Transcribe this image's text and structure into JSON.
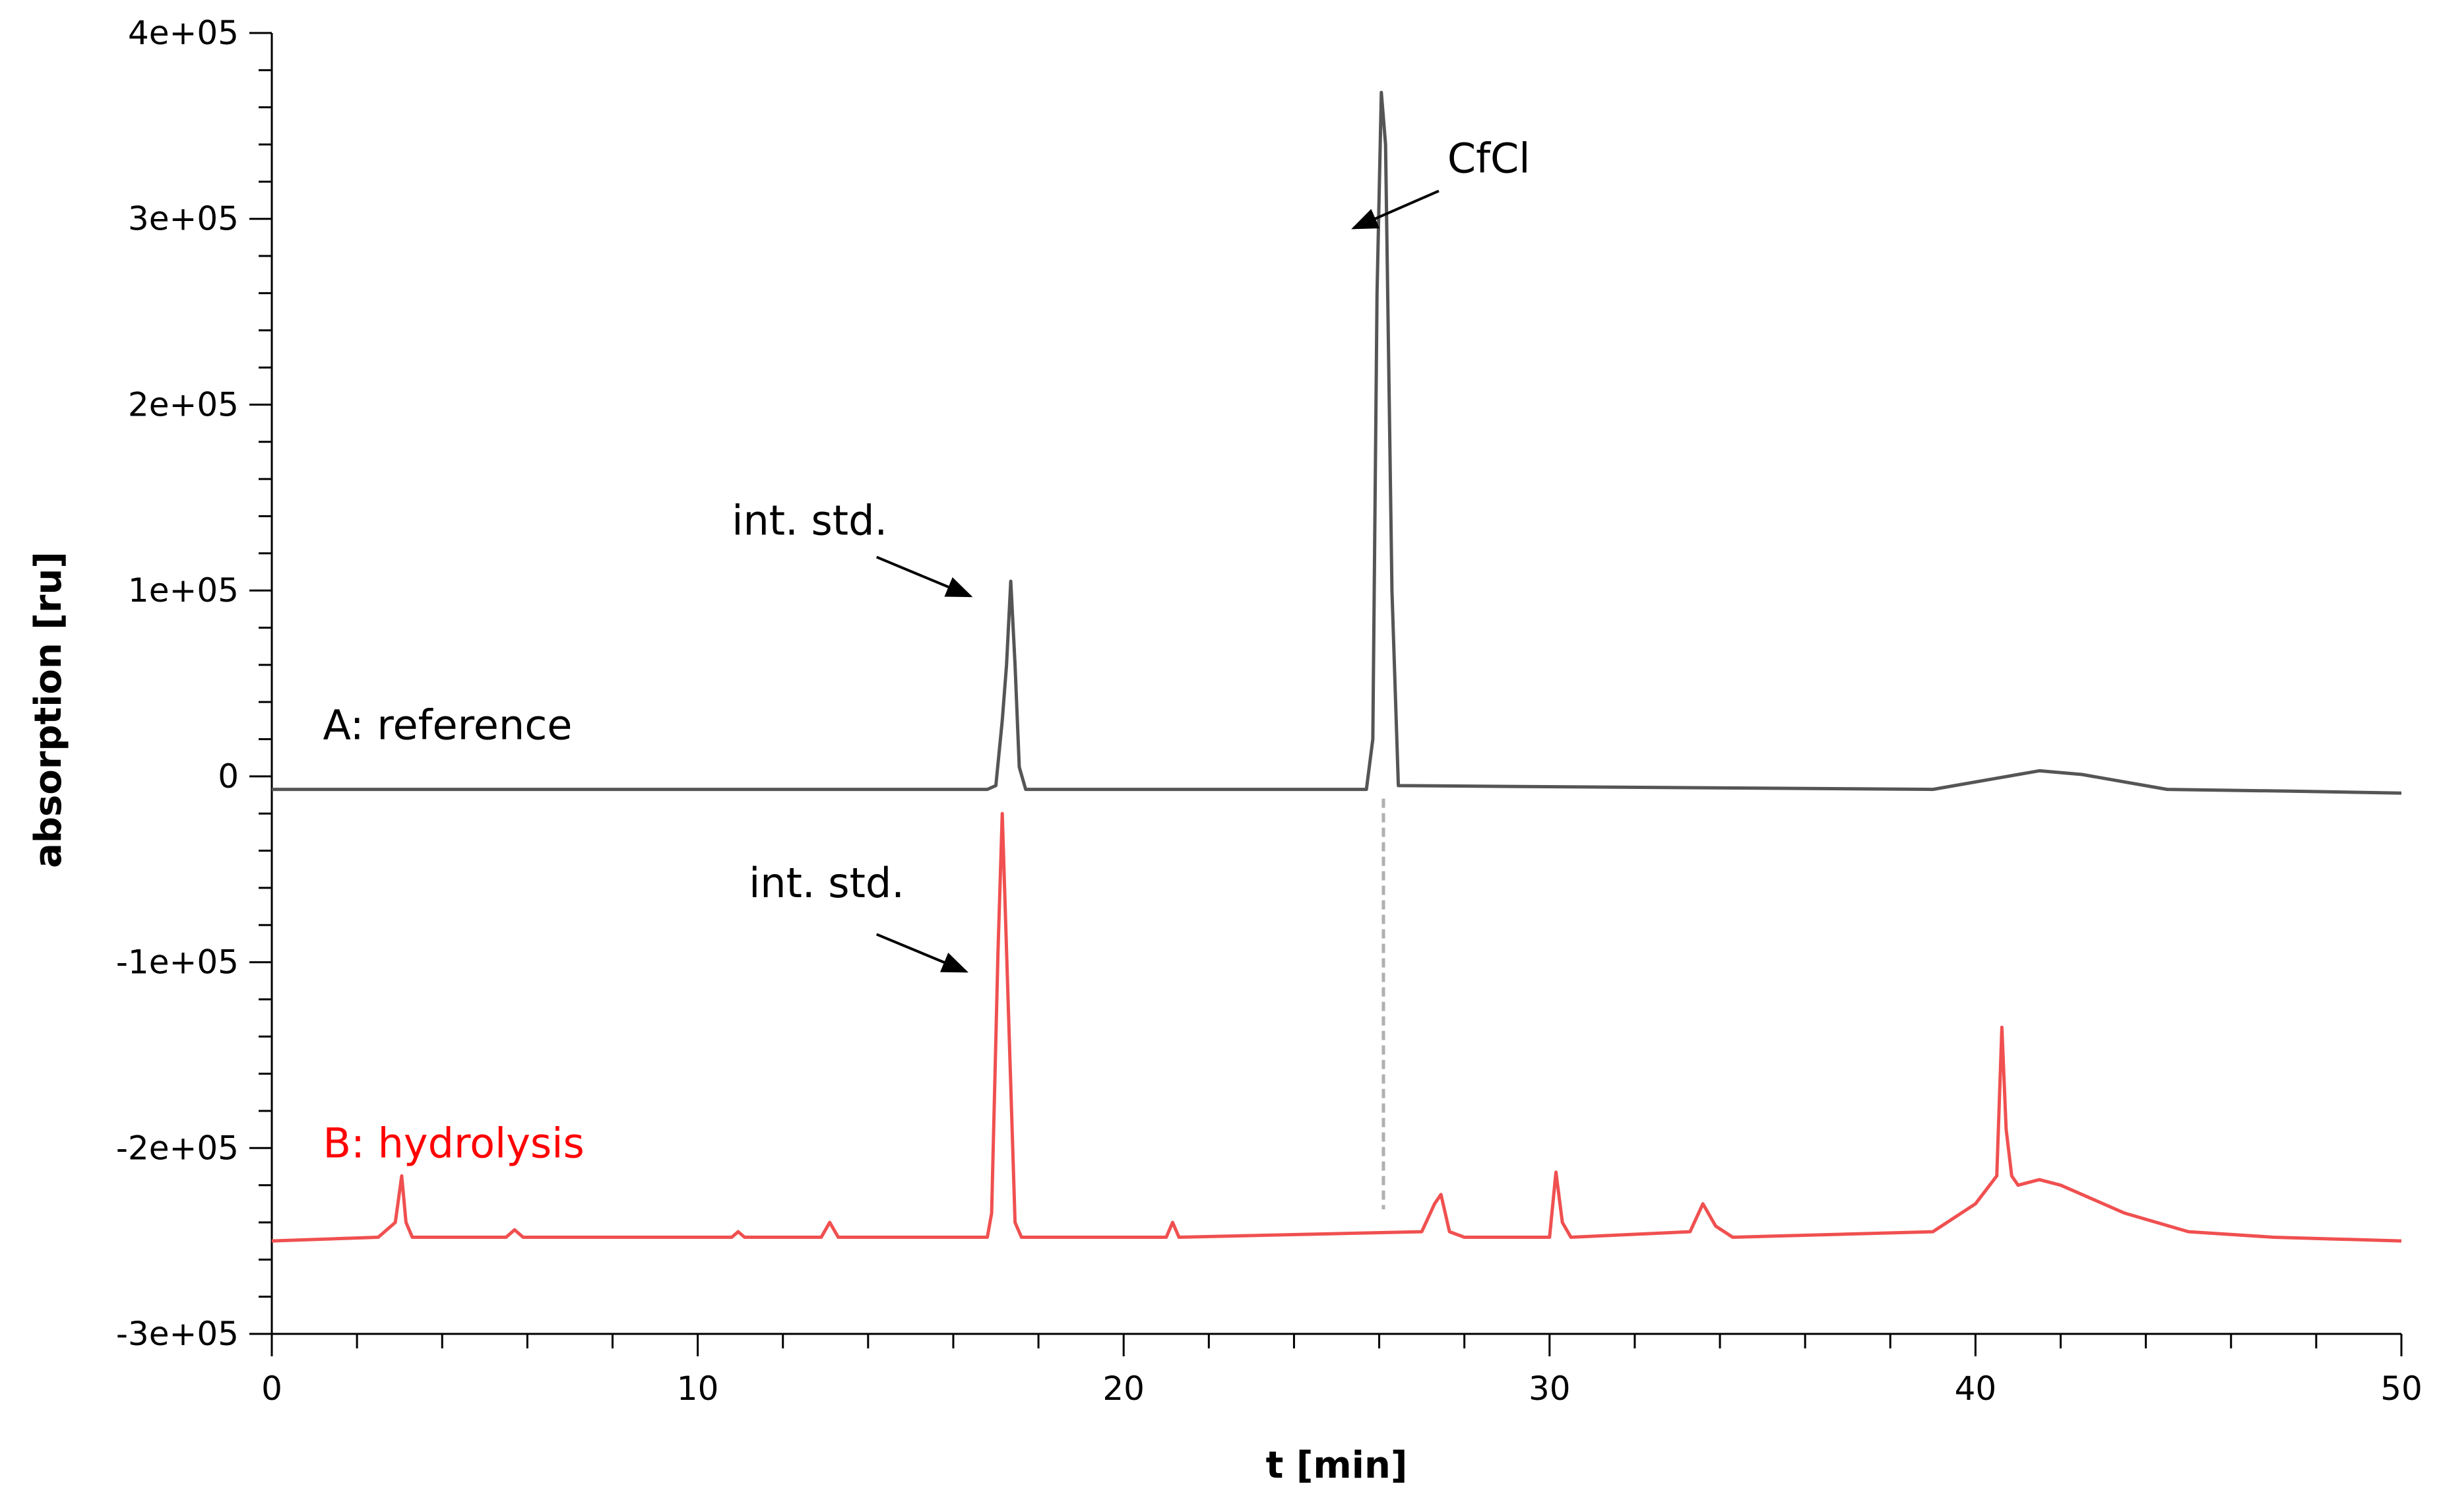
{
  "chart_data": {
    "type": "line",
    "title": "",
    "xlabel": "t [min]",
    "ylabel": "absorption [ru]",
    "xlim": [
      0,
      50
    ],
    "ylim": [
      -300000,
      400000
    ],
    "x_ticks": [
      0,
      10,
      20,
      30,
      40,
      50
    ],
    "x_tick_labels": [
      "0",
      "10",
      "20",
      "30",
      "40",
      "50"
    ],
    "y_ticks": [
      -300000,
      -200000,
      -100000,
      0,
      100000,
      200000,
      300000,
      400000
    ],
    "y_tick_labels": [
      "-3e+05",
      "-2e+05",
      "-1e+05",
      "0",
      "1e+05",
      "2e+05",
      "3e+05",
      "4e+05"
    ],
    "grid": false,
    "colors": {
      "series_a": "#555555",
      "series_b": "#f05050",
      "dashed": "#b0b0b0",
      "axis": "#000000",
      "label_b": "#ff0000"
    },
    "series": [
      {
        "name": "A: reference",
        "color": "#555555",
        "x": [
          0,
          16.8,
          17.0,
          17.15,
          17.25,
          17.35,
          17.45,
          17.55,
          17.7,
          25.7,
          25.85,
          25.95,
          26.05,
          26.15,
          26.3,
          26.45,
          39.0,
          40.5,
          41.5,
          42.5,
          44.5,
          47.5,
          50
        ],
        "y": [
          -7000,
          -7000,
          -5000,
          30000,
          60000,
          105000,
          60000,
          5000,
          -7000,
          -7000,
          20000,
          260000,
          368000,
          340000,
          100000,
          -5000,
          -7000,
          -1000,
          3000,
          1000,
          -7000,
          -8000,
          -9000
        ]
      },
      {
        "name": "B: hydrolysis",
        "color": "#f05050",
        "x": [
          0,
          2.5,
          2.9,
          3.05,
          3.15,
          3.3,
          5.5,
          5.7,
          5.9,
          10.8,
          10.95,
          11.1,
          12.9,
          13.1,
          13.3,
          16.8,
          16.9,
          17.05,
          17.15,
          17.3,
          17.45,
          17.6,
          21.0,
          21.15,
          21.3,
          27.0,
          27.3,
          27.45,
          27.65,
          28.0,
          30.0,
          30.15,
          30.3,
          30.5,
          33.3,
          33.6,
          33.9,
          34.3,
          39.0,
          40.0,
          40.5,
          40.62,
          40.72,
          40.85,
          41.0,
          41.5,
          42.0,
          43.5,
          45.0,
          47.0,
          50
        ],
        "y": [
          -250000,
          -248000,
          -240000,
          -215000,
          -240000,
          -248000,
          -248000,
          -244000,
          -248000,
          -248000,
          -245000,
          -248000,
          -248000,
          -240000,
          -248000,
          -248000,
          -235000,
          -95000,
          -20000,
          -130000,
          -240000,
          -248000,
          -248000,
          -240000,
          -248000,
          -245000,
          -230000,
          -225000,
          -245000,
          -248000,
          -248000,
          -213000,
          -240000,
          -248000,
          -245000,
          -230000,
          -242000,
          -248000,
          -245000,
          -230000,
          -215000,
          -135000,
          -190000,
          -215000,
          -220000,
          -217000,
          -220000,
          -235000,
          -245000,
          -248000,
          -250000
        ]
      }
    ],
    "annotations": [
      {
        "text": "CfCl",
        "x": 27.6,
        "y": 325000,
        "color": "#000000",
        "arrow_from": [
          27.4,
          315000
        ],
        "arrow_to": [
          25.4,
          295000
        ]
      },
      {
        "text": "int. std.",
        "x": 10.8,
        "y": 130000,
        "color": "#000000",
        "arrow_from": [
          14.2,
          118000
        ],
        "arrow_to": [
          16.4,
          97000
        ]
      },
      {
        "text": "int. std.",
        "x": 11.2,
        "y": -65000,
        "color": "#000000",
        "arrow_from": [
          14.2,
          -85000
        ],
        "arrow_to": [
          16.3,
          -105000
        ]
      },
      {
        "text": "A: reference",
        "x": 1.2,
        "y": 20000,
        "color": "#000000"
      },
      {
        "text": "B: hydrolysis",
        "x": 1.2,
        "y": -205000,
        "color": "#ff0000"
      }
    ],
    "dashed_line": {
      "x": 26.1,
      "y_from": -12000,
      "y_to": -233000
    }
  }
}
